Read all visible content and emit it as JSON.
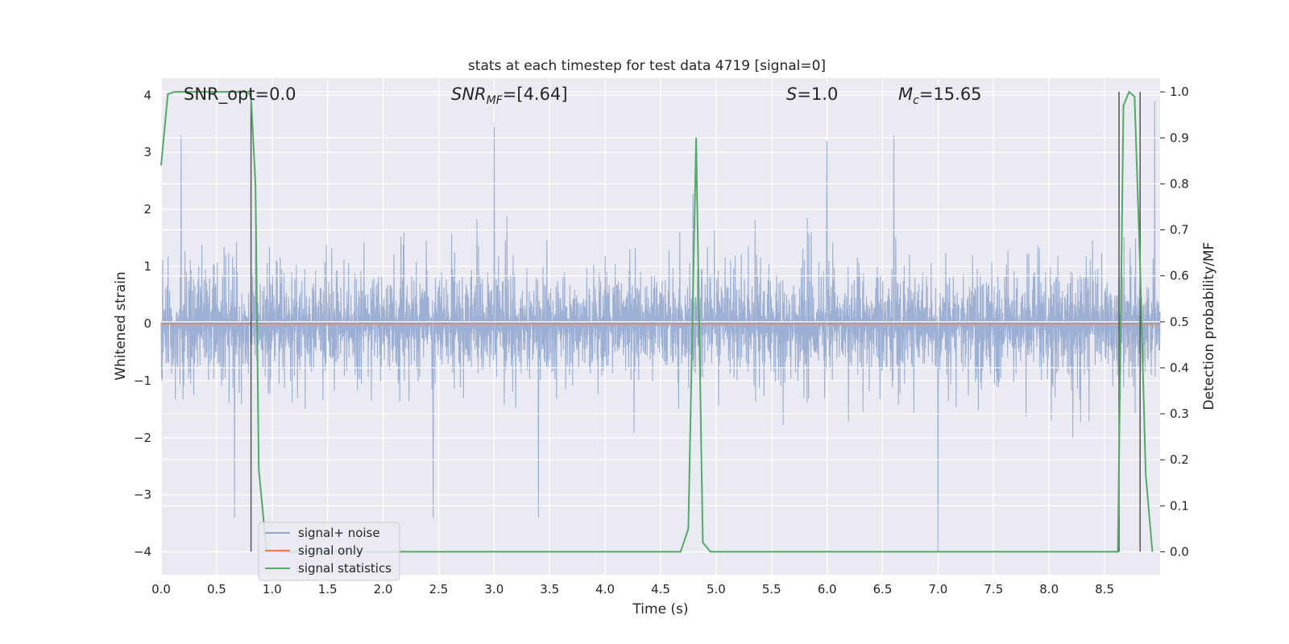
{
  "chart_data": {
    "type": "line",
    "title": "stats at each timestep for test data 4719 [signal=0]",
    "xlabel": "Time (s)",
    "ylabel_left": "Whitened strain",
    "ylabel_right": "Detection probability/MF",
    "xlim": [
      0,
      9
    ],
    "ylim_left": [
      -4.4,
      4.3
    ],
    "ylim_right": [
      -0.05,
      1.03
    ],
    "x_ticks": [
      "0.0",
      "0.5",
      "1.0",
      "1.5",
      "2.0",
      "2.5",
      "3.0",
      "3.5",
      "4.0",
      "4.5",
      "5.0",
      "5.5",
      "6.0",
      "6.5",
      "7.0",
      "7.5",
      "8.0",
      "8.5"
    ],
    "y_ticks_left": [
      "4",
      "3",
      "2",
      "1",
      "0",
      "−1",
      "−2",
      "−3",
      "−4"
    ],
    "y_ticks_right": [
      "1.0",
      "0.9",
      "0.8",
      "0.7",
      "0.6",
      "0.5",
      "0.4",
      "0.3",
      "0.2",
      "0.1",
      "0.0"
    ],
    "grid": true,
    "legend_position": "lower-left",
    "annotations": {
      "snr_opt": "SNR_opt=0.0",
      "snr_mf_main": "SNR",
      "snr_mf_sub": "MF",
      "snr_mf_value": "=[4.64]",
      "s_main": "S",
      "s_value": "=1.0",
      "mc_main": "M",
      "mc_sub": "c",
      "mc_value": "=15.65"
    },
    "series": [
      {
        "name": "signal+ noise",
        "axis": "left",
        "color": "#8fa4cd",
        "envelope": {
          "typical_upper": 1.5,
          "typical_lower": -1.6,
          "peak_max": 3.9,
          "peak_min": -4.0
        },
        "notable_peaks": [
          [
            0.18,
            3.3
          ],
          [
            3.0,
            3.45
          ],
          [
            6.0,
            3.2
          ],
          [
            6.6,
            3.3
          ],
          [
            7.0,
            -4.0
          ],
          [
            8.95,
            3.9
          ],
          [
            2.45,
            -3.4
          ],
          [
            3.4,
            -3.4
          ],
          [
            0.66,
            -3.4
          ]
        ]
      },
      {
        "name": "signal only",
        "axis": "left",
        "color": "#dd8452",
        "x": [
          0,
          9
        ],
        "y": [
          0,
          0
        ]
      },
      {
        "name": "signal statistics",
        "axis": "right",
        "color": "#55a868",
        "x": [
          0.0,
          0.06,
          0.12,
          0.5,
          0.78,
          0.81,
          0.85,
          0.88,
          0.95,
          1.0,
          4.68,
          4.75,
          4.82,
          4.88,
          4.95,
          8.62,
          8.67,
          8.72,
          8.77,
          8.82,
          8.87,
          8.93
        ],
        "y": [
          0.84,
          0.995,
          1.0,
          1.0,
          1.0,
          0.99,
          0.8,
          0.18,
          0.0,
          0.0,
          0.0,
          0.05,
          0.9,
          0.02,
          0.0,
          0.0,
          0.97,
          1.0,
          0.99,
          0.62,
          0.17,
          0.0
        ]
      }
    ],
    "vertical_markers": [
      0.81,
      8.63,
      8.82
    ]
  }
}
